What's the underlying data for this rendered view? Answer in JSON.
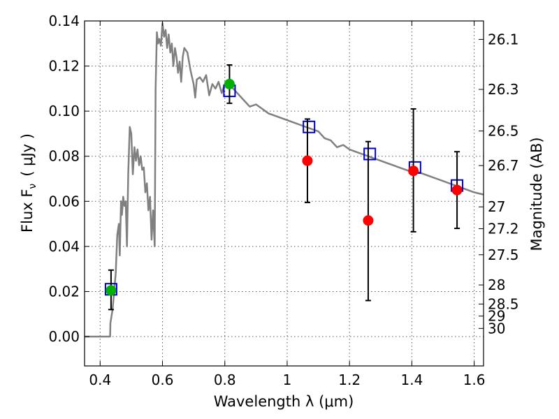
{
  "chart_data": {
    "type": "scatter",
    "xlabel": "Wavelength  λ (μm)",
    "ylabel_left": "Flux  F",
    "ylabel_left_sub": "ν",
    "ylabel_left_unit": "( μJy )",
    "ylabel_right": "Magnitude (AB)",
    "xlim": [
      0.35,
      1.63
    ],
    "ylim": [
      -0.013,
      0.14
    ],
    "grid": true,
    "x_ticks": [
      {
        "value": 0.4,
        "label": "0.4"
      },
      {
        "value": 0.6,
        "label": "0.6"
      },
      {
        "value": 0.8,
        "label": "0.8"
      },
      {
        "value": 1.0,
        "label": "1"
      },
      {
        "value": 1.2,
        "label": "1.2"
      },
      {
        "value": 1.4,
        "label": "1.4"
      },
      {
        "value": 1.6,
        "label": "1.6"
      }
    ],
    "y_ticks": [
      {
        "value": 0.0,
        "label": "0.00"
      },
      {
        "value": 0.02,
        "label": "0.02"
      },
      {
        "value": 0.04,
        "label": "0.04"
      },
      {
        "value": 0.06,
        "label": "0.06"
      },
      {
        "value": 0.08,
        "label": "0.08"
      },
      {
        "value": 0.1,
        "label": "0.10"
      },
      {
        "value": 0.12,
        "label": "0.12"
      },
      {
        "value": 0.14,
        "label": "0.14"
      }
    ],
    "right_ticks": [
      {
        "mag": 26.1,
        "label": "26.1"
      },
      {
        "mag": 26.3,
        "label": "26.3"
      },
      {
        "mag": 26.5,
        "label": "26.5"
      },
      {
        "mag": 26.7,
        "label": "26.7"
      },
      {
        "mag": 27.0,
        "label": "27"
      },
      {
        "mag": 27.2,
        "label": "27.2"
      },
      {
        "mag": 27.5,
        "label": "27.5"
      },
      {
        "mag": 28.0,
        "label": "28"
      },
      {
        "mag": 28.5,
        "label": "28.5"
      },
      {
        "mag": 29.0,
        "label": "29"
      },
      {
        "mag": 30.0,
        "label": "30"
      }
    ],
    "colors": {
      "sed": "#808080",
      "model_box": "#0000cc",
      "red_point": "#ff0000",
      "green_point": "#00b000",
      "errorbar": "#000000"
    },
    "model_spectrum": {
      "x": [
        0.35,
        0.432,
        0.433,
        0.44,
        0.45,
        0.455,
        0.46,
        0.463,
        0.467,
        0.47,
        0.474,
        0.478,
        0.482,
        0.486,
        0.49,
        0.495,
        0.5,
        0.505,
        0.51,
        0.515,
        0.52,
        0.525,
        0.53,
        0.535,
        0.54,
        0.545,
        0.55,
        0.555,
        0.56,
        0.565,
        0.57,
        0.575,
        0.578,
        0.582,
        0.586,
        0.59,
        0.595,
        0.6,
        0.605,
        0.61,
        0.615,
        0.62,
        0.625,
        0.63,
        0.635,
        0.64,
        0.645,
        0.65,
        0.655,
        0.66,
        0.665,
        0.67,
        0.68,
        0.69,
        0.7,
        0.705,
        0.71,
        0.72,
        0.73,
        0.74,
        0.75,
        0.76,
        0.77,
        0.78,
        0.79,
        0.8,
        0.82,
        0.84,
        0.86,
        0.88,
        0.9,
        0.92,
        0.94,
        0.96,
        0.98,
        1.0,
        1.02,
        1.04,
        1.06,
        1.08,
        1.1,
        1.12,
        1.14,
        1.16,
        1.18,
        1.2,
        1.22,
        1.24,
        1.26,
        1.28,
        1.3,
        1.32,
        1.34,
        1.36,
        1.38,
        1.4,
        1.42,
        1.44,
        1.46,
        1.48,
        1.5,
        1.52,
        1.54,
        1.56,
        1.58,
        1.6,
        1.63
      ],
      "y": [
        0.0,
        0.0,
        0.006,
        0.012,
        0.028,
        0.045,
        0.05,
        0.036,
        0.06,
        0.054,
        0.062,
        0.058,
        0.06,
        0.04,
        0.072,
        0.093,
        0.09,
        0.072,
        0.084,
        0.078,
        0.083,
        0.076,
        0.08,
        0.074,
        0.075,
        0.064,
        0.068,
        0.056,
        0.062,
        0.043,
        0.056,
        0.04,
        0.11,
        0.135,
        0.13,
        0.132,
        0.129,
        0.139,
        0.133,
        0.136,
        0.128,
        0.134,
        0.126,
        0.13,
        0.12,
        0.128,
        0.124,
        0.117,
        0.122,
        0.113,
        0.124,
        0.128,
        0.126,
        0.118,
        0.112,
        0.106,
        0.114,
        0.115,
        0.113,
        0.116,
        0.107,
        0.112,
        0.11,
        0.113,
        0.108,
        0.112,
        0.111,
        0.108,
        0.105,
        0.102,
        0.103,
        0.101,
        0.099,
        0.098,
        0.097,
        0.096,
        0.095,
        0.094,
        0.093,
        0.092,
        0.091,
        0.088,
        0.087,
        0.084,
        0.085,
        0.083,
        0.082,
        0.081,
        0.08,
        0.079,
        0.078,
        0.077,
        0.076,
        0.075,
        0.074,
        0.073,
        0.073,
        0.072,
        0.071,
        0.07,
        0.069,
        0.068,
        0.067,
        0.066,
        0.065,
        0.064,
        0.063
      ]
    },
    "model_photometry": [
      {
        "x": 0.435,
        "y": 0.021
      },
      {
        "x": 0.815,
        "y": 0.109
      },
      {
        "x": 1.07,
        "y": 0.093
      },
      {
        "x": 1.265,
        "y": 0.081
      },
      {
        "x": 1.41,
        "y": 0.075
      },
      {
        "x": 1.545,
        "y": 0.067
      }
    ],
    "observed": [
      {
        "x": 0.435,
        "y": 0.0205,
        "err_lo": 0.0085,
        "err_hi": 0.009,
        "color": "green_point"
      },
      {
        "x": 0.815,
        "y": 0.112,
        "err_lo": 0.0085,
        "err_hi": 0.0085,
        "color": "green_point"
      },
      {
        "x": 1.065,
        "y": 0.078,
        "err_lo": 0.0185,
        "err_hi": 0.0185,
        "color": "red_point"
      },
      {
        "x": 1.26,
        "y": 0.0515,
        "err_lo": 0.0355,
        "err_hi": 0.035,
        "color": "red_point"
      },
      {
        "x": 1.405,
        "y": 0.0735,
        "err_lo": 0.027,
        "err_hi": 0.0275,
        "color": "red_point"
      },
      {
        "x": 1.545,
        "y": 0.065,
        "err_lo": 0.017,
        "err_hi": 0.017,
        "color": "red_point"
      }
    ]
  }
}
